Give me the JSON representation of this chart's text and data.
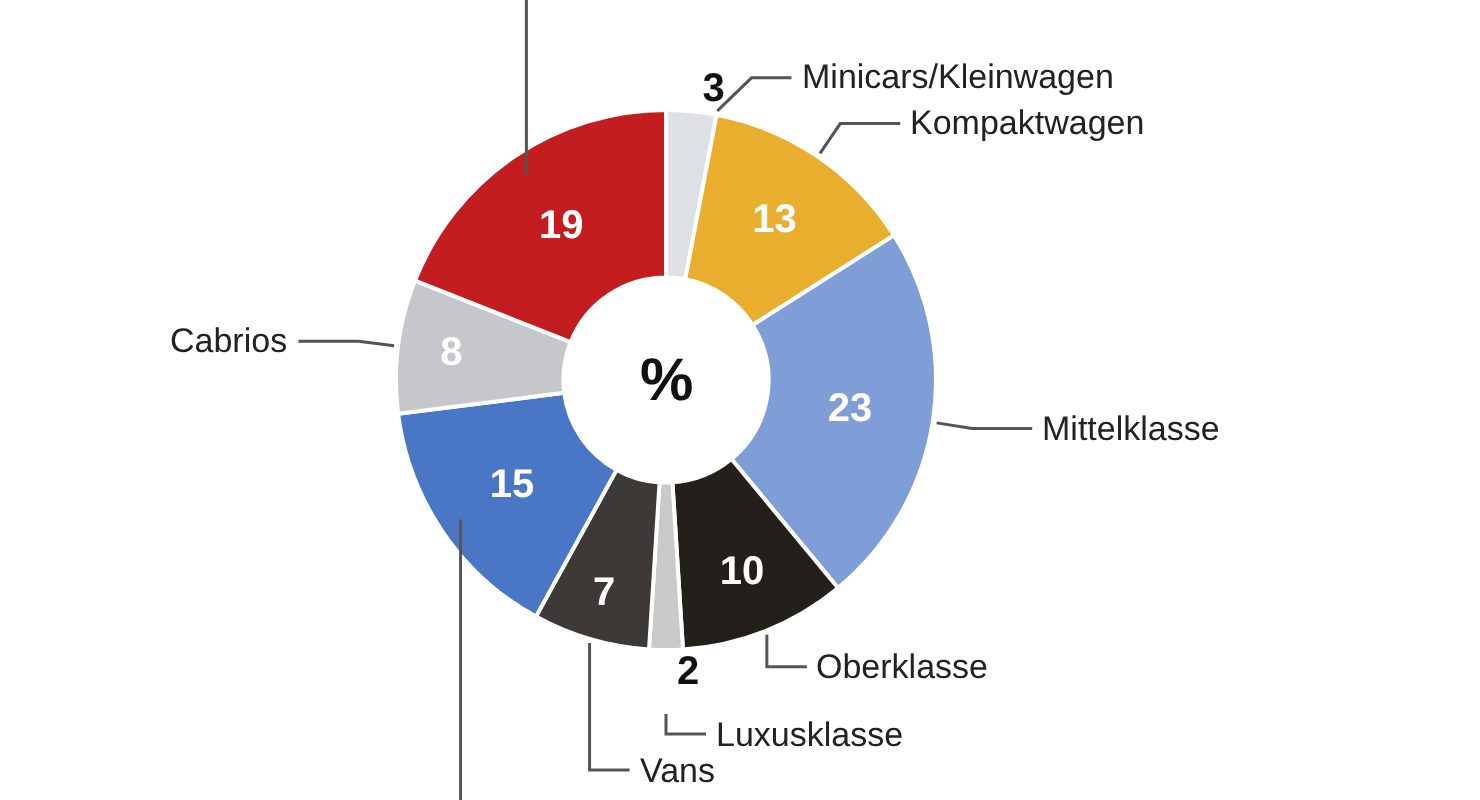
{
  "chart_data": {
    "type": "donut",
    "categories": [
      "Minicars/Kleinwagen",
      "Kompaktwagen",
      "Mittelklasse",
      "Oberklasse",
      "Luxusklasse",
      "Vans",
      null,
      "Cabrios",
      null
    ],
    "values": [
      3,
      13,
      23,
      10,
      2,
      7,
      15,
      8,
      19
    ],
    "colors": [
      "#dde1e6",
      "#e9ae2e",
      "#7f9dd6",
      "#231f1b",
      "#c9c9c9",
      "#3d3937",
      "#4a76c6",
      "#c6c7cb",
      "#c41d1f"
    ],
    "data_labels": true,
    "annotations": [
      "%"
    ]
  }
}
